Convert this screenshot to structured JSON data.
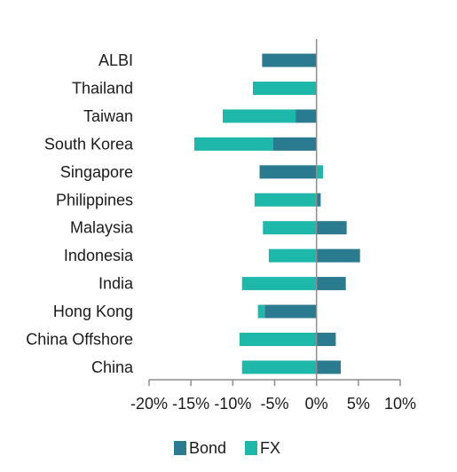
{
  "chart_data": {
    "type": "bar",
    "orientation": "horizontal",
    "stacked": true,
    "categories": [
      "ALBI",
      "Thailand",
      "Taiwan",
      "South Korea",
      "Singapore",
      "Philippines",
      "Malaysia",
      "Indonesia",
      "India",
      "Hong Kong",
      "China Offshore",
      "China"
    ],
    "series": [
      {
        "name": "Bond",
        "color": "#2a7b8f",
        "values": [
          -6.5,
          0.0,
          -2.5,
          -5.2,
          -6.8,
          0.5,
          3.6,
          5.2,
          3.5,
          -6.2,
          2.3,
          2.9
        ]
      },
      {
        "name": "FX",
        "color": "#1db8aa",
        "values": [
          0.0,
          -7.6,
          -8.7,
          -9.4,
          0.8,
          -7.4,
          -6.4,
          -5.7,
          -8.9,
          -0.8,
          -9.2,
          -8.9
        ]
      }
    ],
    "xlim": [
      -20,
      10
    ],
    "xticks": [
      -20,
      -15,
      -10,
      -5,
      0,
      5,
      10
    ],
    "xtick_labels": [
      "-20%",
      "-15%",
      "-10%",
      "-5%",
      "0%",
      "5%",
      "10%"
    ],
    "grid": false,
    "legend_position": "bottom"
  }
}
